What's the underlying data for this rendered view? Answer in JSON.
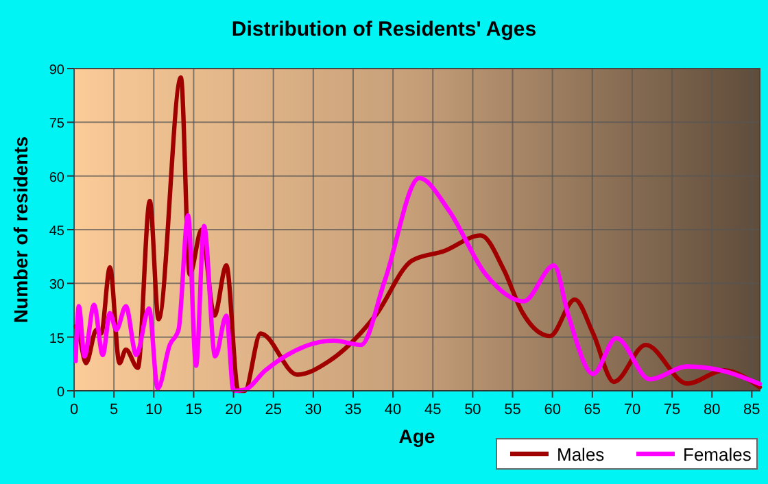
{
  "chart_data": {
    "type": "line",
    "title": "Distribution of Residents' Ages",
    "xlabel": "Age",
    "ylabel": "Number of residents",
    "xlim": [
      0,
      86
    ],
    "xticks": [
      0,
      5,
      10,
      15,
      20,
      25,
      30,
      35,
      40,
      45,
      50,
      55,
      60,
      65,
      70,
      75,
      80,
      85
    ],
    "ylim": [
      0,
      90
    ],
    "yticks": [
      0,
      15,
      30,
      45,
      60,
      75,
      90
    ],
    "grid": true,
    "legend": "bottom right",
    "line_style": "solid",
    "marker": "none",
    "series": [
      {
        "name": "Males",
        "color": "#a00000",
        "x": [
          0.2,
          0.6,
          1.5,
          2.8,
          3.4,
          4.5,
          5.7,
          6.5,
          8,
          9.5,
          10.6,
          13.4,
          14.5,
          16,
          17.6,
          19.1,
          20.6,
          21.4,
          23.4,
          28,
          32,
          37.8,
          42.4,
          46.4,
          51,
          53.9,
          56.2,
          59.7,
          62.8,
          65.1,
          67.7,
          71.7,
          76.9,
          81.5,
          86
        ],
        "values": [
          18,
          16,
          7.7,
          17,
          16,
          34.5,
          7.7,
          11.5,
          6.4,
          53,
          20,
          87.5,
          32.5,
          45,
          21,
          35,
          0,
          0,
          16,
          4.5,
          8.3,
          21,
          36.4,
          39,
          43.4,
          33.8,
          22,
          15.3,
          25.5,
          16,
          2.5,
          12.8,
          2,
          5.7,
          1
        ]
      },
      {
        "name": "Females",
        "color": "#ff00ff",
        "x": [
          0.2,
          0.6,
          1.3,
          2.5,
          3.6,
          4.5,
          5.3,
          6.5,
          7.8,
          9.4,
          10.5,
          12,
          13.1,
          14.3,
          15.3,
          16.3,
          17.7,
          19.1,
          20,
          21.4,
          24,
          32.6,
          36,
          39,
          43.3,
          47,
          51.6,
          56.4,
          60.2,
          62,
          65.1,
          68,
          72.2,
          76.9,
          81.5,
          86
        ],
        "values": [
          8.3,
          23.6,
          9.6,
          24,
          10,
          21.7,
          17,
          23.6,
          10,
          23,
          0.6,
          12.8,
          17,
          49,
          7,
          46,
          9.6,
          21,
          0,
          0.3,
          5.7,
          14,
          12.8,
          31,
          59.4,
          50.4,
          32.6,
          25,
          35,
          21,
          4.7,
          14.7,
          3.2,
          6.8,
          5.5,
          1.9
        ]
      }
    ]
  }
}
